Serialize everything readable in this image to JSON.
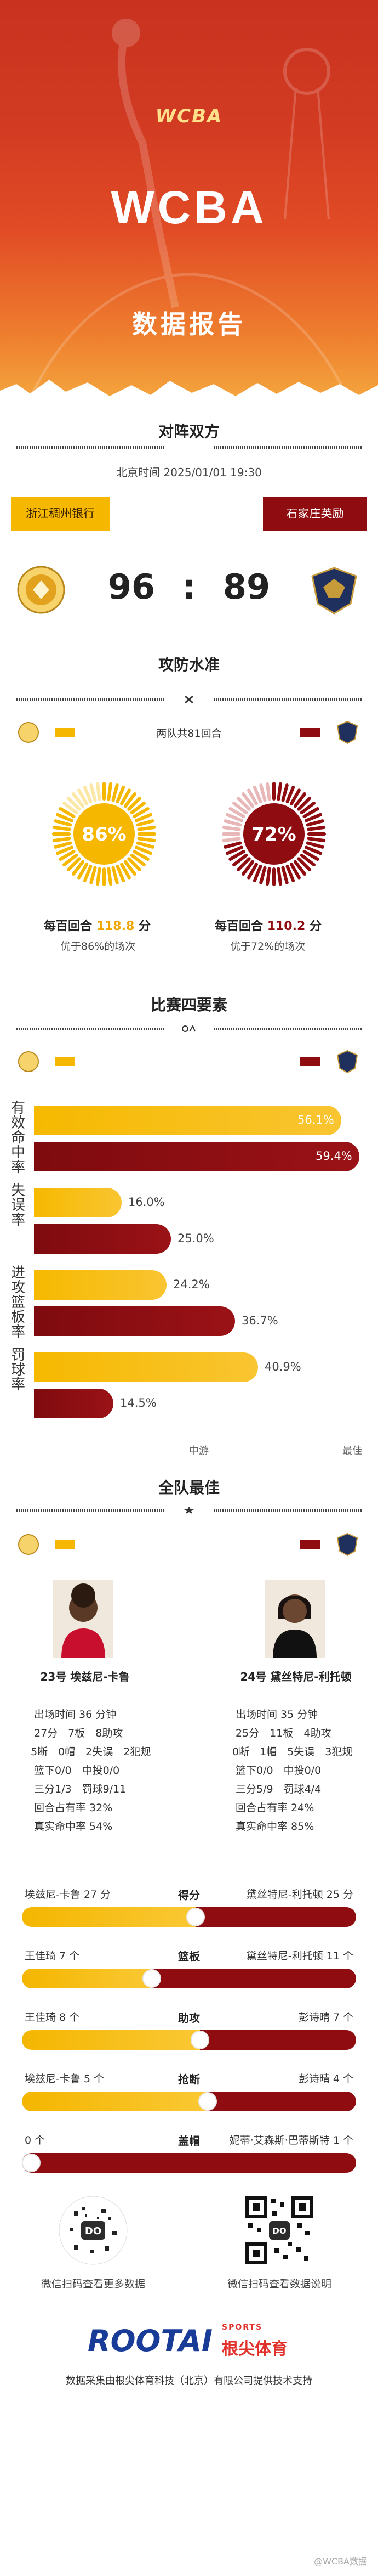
{
  "header": {
    "league_logo": "WCBA",
    "title": "WCBA",
    "subtitle": "数据报告"
  },
  "matchup": {
    "section_title": "对阵双方",
    "datetime": "北京时间 2025/01/01 19:30",
    "home_team": "浙江稠州银行",
    "away_team": "石家庄英励",
    "home_score": "96",
    "score_separator": ":",
    "away_score": "89",
    "home_color": "#f5b700",
    "away_color": "#8f0d10"
  },
  "offense_defense": {
    "section_title": "攻防水准",
    "rounds_text": "两队共81回合",
    "home": {
      "rating_pct": 86,
      "pct_label": "86%",
      "label_prefix": "每百回合",
      "value": "118.8",
      "unit": "分",
      "sub": "优于86%的场次"
    },
    "away": {
      "rating_pct": 72,
      "pct_label": "72%",
      "label_prefix": "每百回合",
      "value": "110.2",
      "unit": "分",
      "sub": "优于72%的场次"
    }
  },
  "four_factors": {
    "section_title": "比赛四要素",
    "rows": [
      {
        "category": [
          "有",
          "效",
          "命",
          "中",
          "率"
        ],
        "home": 56.1,
        "home_label": "56.1%",
        "away": 59.4,
        "away_label": "59.4%"
      },
      {
        "category": [
          "失",
          "误",
          "率"
        ],
        "home": 16.0,
        "home_label": "16.0%",
        "away": 25.0,
        "away_label": "25.0%"
      },
      {
        "category": [
          "进",
          "攻",
          "篮",
          "板",
          "率"
        ],
        "home": 24.2,
        "home_label": "24.2%",
        "away": 36.7,
        "away_label": "36.7%"
      },
      {
        "category": [
          "罚",
          "球",
          "率"
        ],
        "home": 40.9,
        "home_label": "40.9%",
        "away": 14.5,
        "away_label": "14.5%"
      }
    ],
    "scale_mid": "中游",
    "scale_best": "最佳"
  },
  "best_players": {
    "section_title": "全队最佳",
    "home": {
      "name": "23号 埃兹尼-卡鲁",
      "line1": "出场时间 36 分钟",
      "line2": "27分　7板　8助攻",
      "line3": "5断　0帽　2失误　2犯规",
      "line4": "篮下0/0　中投0/0",
      "line5": "三分1/3　罚球9/11",
      "line6": "回合占有率 32%",
      "line7": "真实命中率 54%"
    },
    "away": {
      "name": "24号 黛丝特尼-利托顿",
      "line1": "出场时间 35 分钟",
      "line2": "25分　11板　4助攻",
      "line3": "0断　1帽　5失误　3犯规",
      "line4": "篮下0/0　中投0/0",
      "line5": "三分5/9　罚球4/4",
      "line6": "回合占有率 24%",
      "line7": "真实命中率 85%"
    }
  },
  "leaders": [
    {
      "stat": "得分",
      "home_label": "埃兹尼-卡鲁 27 分",
      "away_label": "黛丝特尼-利托顿 25 分",
      "home_value": 27,
      "away_value": 25
    },
    {
      "stat": "篮板",
      "home_label": "王佳琦 7 个",
      "away_label": "黛丝特尼-利托顿 11 个",
      "home_value": 7,
      "away_value": 11
    },
    {
      "stat": "助攻",
      "home_label": "王佳琦 8 个",
      "away_label": "彭诗晴 7 个",
      "home_value": 8,
      "away_value": 7
    },
    {
      "stat": "抢断",
      "home_label": "埃兹尼-卡鲁 5 个",
      "away_label": "彭诗晴 4 个",
      "home_value": 5,
      "away_value": 4
    },
    {
      "stat": "盖帽",
      "home_label": "0 个",
      "away_label": "妮蒂·艾森斯·巴蒂斯特 1 个",
      "home_value": 0,
      "away_value": 1
    }
  ],
  "footer": {
    "qr_left_caption": "微信扫码查看更多数据",
    "qr_right_caption": "微信扫码查看数据说明",
    "brand": "ROOTAI",
    "brand_cn": "根尖体育",
    "brand_tag": "SPORTS",
    "credit": "数据采集由根尖体育科技（北京）有限公司提供技术支持",
    "watermark": "@WCBA数据"
  }
}
